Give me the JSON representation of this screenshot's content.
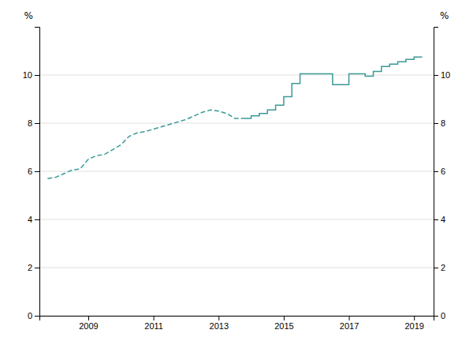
{
  "chart_data": {
    "type": "line",
    "ylabel": "%",
    "y2label": "%",
    "series": [
      {
        "color": "#3a9a96",
        "line_style": "dashed",
        "x": [
          2007.75,
          2008.0,
          2008.25,
          2008.5,
          2008.75,
          2009.0,
          2009.25,
          2009.5,
          2009.75,
          2010.0,
          2010.25,
          2010.5,
          2010.75,
          2011.0,
          2011.25,
          2011.5,
          2011.75,
          2012.0,
          2012.25,
          2012.5,
          2012.75,
          2013.0,
          2013.25,
          2013.5,
          2013.75
        ],
        "values": [
          5.7,
          5.75,
          5.9,
          6.05,
          6.1,
          6.5,
          6.65,
          6.7,
          6.9,
          7.1,
          7.45,
          7.6,
          7.65,
          7.75,
          7.85,
          7.95,
          8.05,
          8.15,
          8.3,
          8.45,
          8.55,
          8.5,
          8.4,
          8.2,
          8.2
        ]
      },
      {
        "color": "#3a9a96",
        "line_style": "solid",
        "x": [
          2013.75,
          2013.76,
          2014.0,
          2014.0,
          2014.25,
          2014.25,
          2014.5,
          2014.5,
          2014.75,
          2014.75,
          2015.0,
          2015.0,
          2015.25,
          2015.25,
          2015.5,
          2015.5,
          2015.75,
          2015.75,
          2016.0,
          2016.0,
          2016.25,
          2016.25,
          2016.5,
          2016.5,
          2016.75,
          2016.75,
          2017.0,
          2017.0,
          2017.25,
          2017.25,
          2017.5,
          2017.5,
          2017.75,
          2017.75,
          2018.0,
          2018.0,
          2018.25,
          2018.25,
          2018.5,
          2018.5,
          2018.75,
          2018.75,
          2019.0,
          2019.0,
          2019.25
        ],
        "values": [
          8.2,
          8.2,
          8.2,
          8.3,
          8.3,
          8.4,
          8.4,
          8.55,
          8.55,
          8.75,
          8.75,
          9.1,
          9.1,
          9.65,
          9.65,
          10.05,
          10.05,
          10.05,
          10.05,
          10.05,
          10.05,
          10.05,
          10.05,
          9.6,
          9.6,
          9.6,
          9.6,
          10.05,
          10.05,
          10.05,
          10.05,
          9.95,
          9.95,
          10.15,
          10.15,
          10.35,
          10.35,
          10.45,
          10.45,
          10.55,
          10.55,
          10.65,
          10.65,
          10.75,
          10.75
        ]
      }
    ],
    "xlim": [
      2007.5,
      2019.6
    ],
    "xticks": [
      2009,
      2011,
      2013,
      2015,
      2017,
      2019
    ],
    "ylim": [
      0,
      12
    ],
    "yticks": [
      0,
      2,
      4,
      6,
      8,
      10
    ],
    "y2lim": [
      0,
      12
    ],
    "y2ticks": [
      0,
      2,
      4,
      6,
      8,
      10
    ],
    "grid": true
  }
}
